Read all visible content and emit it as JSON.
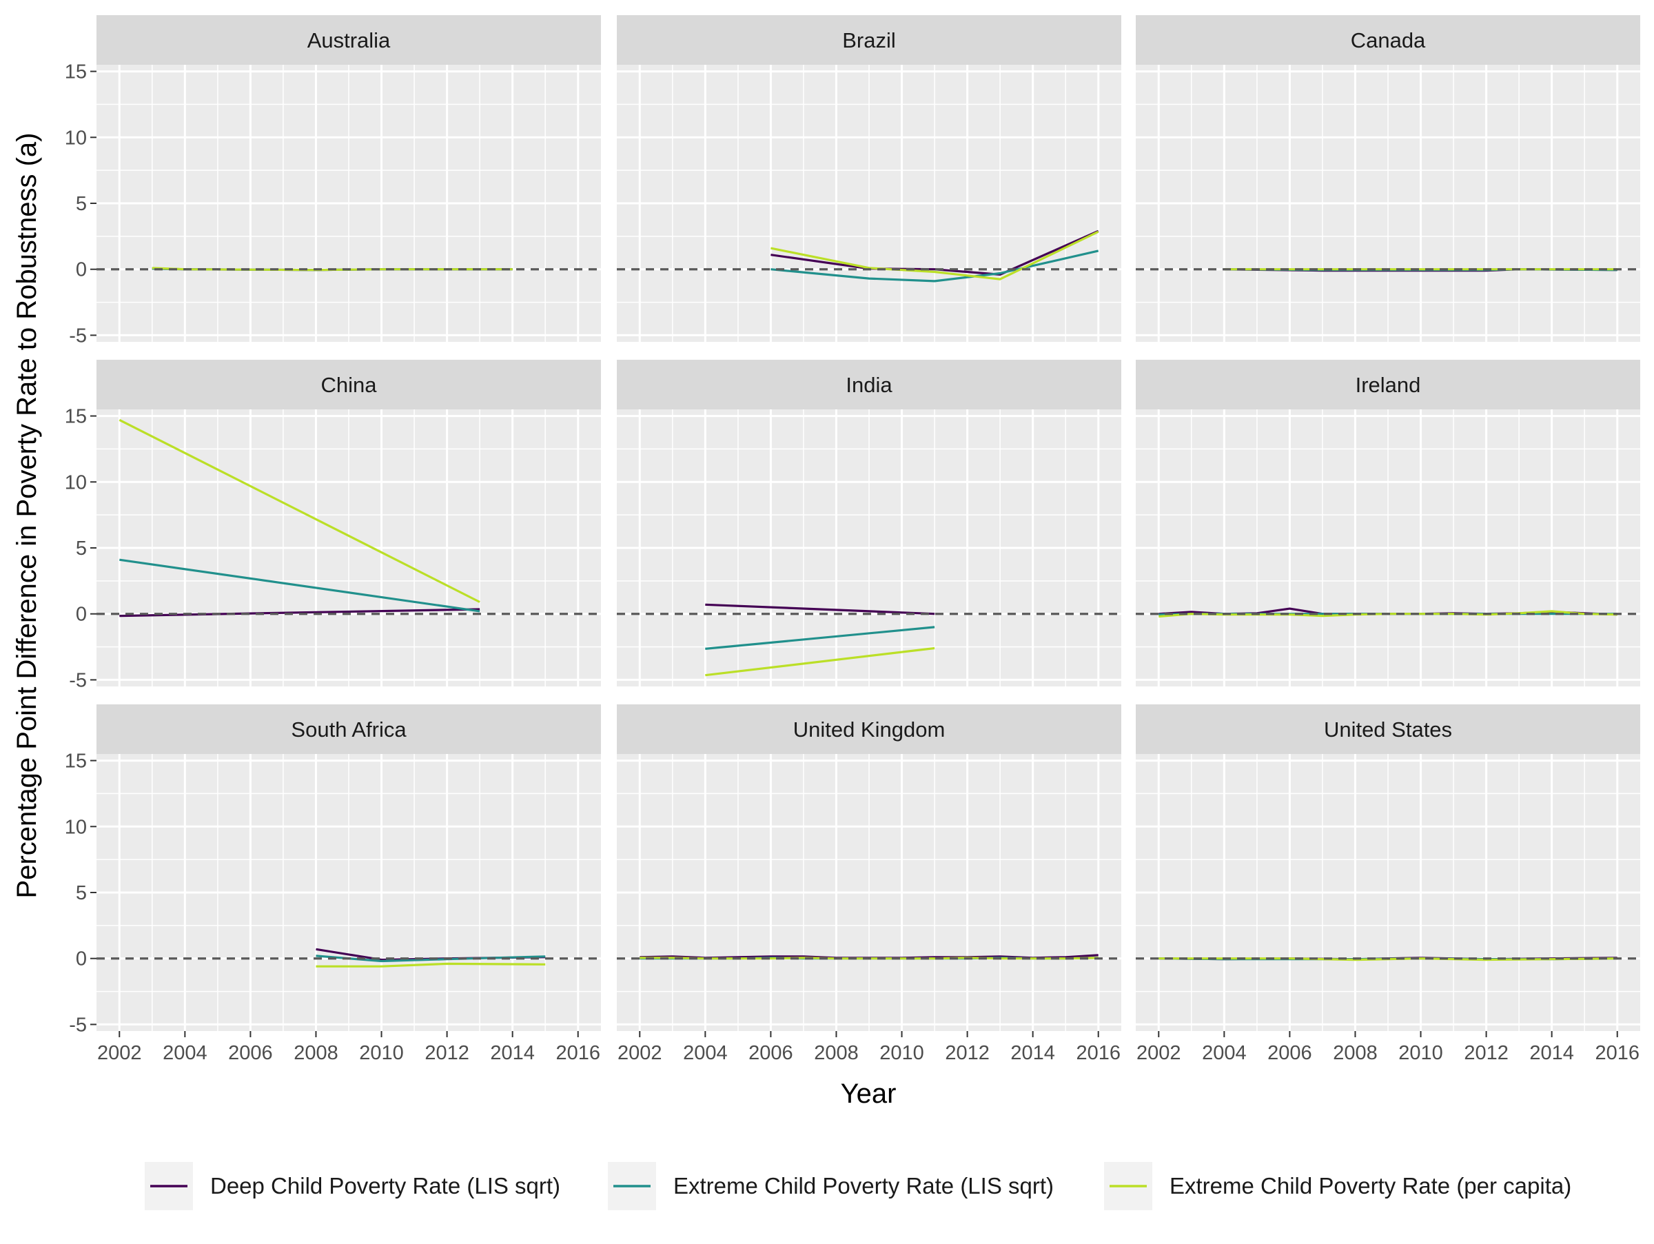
{
  "chart_data": {
    "type": "line",
    "xlabel": "Year",
    "ylabel": "Percentage Point Difference in Poverty Rate to Robustness (a)",
    "xlim": [
      2001.3,
      2016.7
    ],
    "ylim": [
      -5.5,
      15.5
    ],
    "x_ticks": [
      2002,
      2004,
      2006,
      2008,
      2010,
      2012,
      2014,
      2016
    ],
    "x_tick_labels": [
      "2002",
      "2004",
      "2006",
      "2008",
      "2010",
      "2012",
      "2014",
      "2016"
    ],
    "y_ticks": [
      -5,
      0,
      5,
      10,
      15
    ],
    "y_tick_labels": [
      "-5",
      "0",
      "5",
      "10",
      "15"
    ],
    "reference_line": 0,
    "grid": true,
    "legend_position": "bottom",
    "series_names": [
      "Deep Child Poverty Rate (LIS sqrt)",
      "Extreme Child Poverty Rate (LIS sqrt)",
      "Extreme Child Poverty Rate (per capita)"
    ],
    "series_colors": [
      "#440154",
      "#21908C",
      "#BBDF27"
    ],
    "panels": [
      {
        "country": "Australia",
        "series": [
          {
            "x": [
              2003,
              2004,
              2008,
              2010,
              2014
            ],
            "y": [
              0.05,
              0.0,
              -0.05,
              0.0,
              0.0
            ]
          },
          {
            "x": [
              2003,
              2004,
              2008,
              2010,
              2014
            ],
            "y": [
              0.05,
              0.0,
              -0.05,
              0.0,
              0.0
            ]
          },
          {
            "x": [
              2003,
              2004,
              2008,
              2010,
              2014
            ],
            "y": [
              0.1,
              0.0,
              -0.05,
              0.0,
              0.0
            ]
          }
        ]
      },
      {
        "country": "Brazil",
        "series": [
          {
            "x": [
              2006,
              2009,
              2011,
              2013,
              2016
            ],
            "y": [
              1.1,
              0.05,
              0.0,
              -0.4,
              2.9
            ]
          },
          {
            "x": [
              2006,
              2009,
              2011,
              2013,
              2016
            ],
            "y": [
              0.0,
              -0.7,
              -0.9,
              -0.3,
              1.4
            ]
          },
          {
            "x": [
              2006,
              2009,
              2011,
              2013,
              2016
            ],
            "y": [
              1.6,
              0.1,
              -0.2,
              -0.75,
              2.85
            ]
          }
        ]
      },
      {
        "country": "Canada",
        "series": [
          {
            "x": [
              2004,
              2007,
              2010,
              2012,
              2013,
              2016
            ],
            "y": [
              0.0,
              -0.1,
              -0.1,
              -0.1,
              0.0,
              -0.05
            ]
          },
          {
            "x": [
              2004,
              2007,
              2010,
              2012,
              2013,
              2016
            ],
            "y": [
              0.0,
              -0.05,
              -0.05,
              -0.05,
              0.0,
              -0.05
            ]
          },
          {
            "x": [
              2004,
              2007,
              2010,
              2012,
              2013,
              2016
            ],
            "y": [
              0.0,
              0.0,
              0.0,
              0.0,
              0.0,
              0.0
            ]
          }
        ]
      },
      {
        "country": "China",
        "series": [
          {
            "x": [
              2002,
              2013
            ],
            "y": [
              -0.15,
              0.35
            ]
          },
          {
            "x": [
              2002,
              2013
            ],
            "y": [
              4.1,
              0.2
            ]
          },
          {
            "x": [
              2002,
              2013
            ],
            "y": [
              14.7,
              0.9
            ]
          }
        ]
      },
      {
        "country": "India",
        "series": [
          {
            "x": [
              2004,
              2011
            ],
            "y": [
              0.7,
              0.0
            ]
          },
          {
            "x": [
              2004,
              2011
            ],
            "y": [
              -2.65,
              -1.0
            ]
          },
          {
            "x": [
              2004,
              2011
            ],
            "y": [
              -4.65,
              -2.6
            ]
          }
        ]
      },
      {
        "country": "Ireland",
        "series": [
          {
            "x": [
              2002,
              2003,
              2004,
              2005,
              2006,
              2007,
              2008,
              2009,
              2010,
              2011,
              2012,
              2013,
              2014,
              2015,
              2016
            ],
            "y": [
              0.0,
              0.15,
              0.0,
              0.05,
              0.4,
              0.0,
              0.0,
              0.0,
              0.0,
              0.05,
              0.0,
              0.05,
              0.15,
              0.05,
              -0.05
            ]
          },
          {
            "x": [
              2002,
              2003,
              2004,
              2005,
              2006,
              2007,
              2008,
              2009,
              2010,
              2011,
              2012,
              2013,
              2014,
              2015,
              2016
            ],
            "y": [
              -0.05,
              0.0,
              0.0,
              0.0,
              0.0,
              0.0,
              0.0,
              0.0,
              0.0,
              0.0,
              0.0,
              0.0,
              0.0,
              0.0,
              0.0
            ]
          },
          {
            "x": [
              2002,
              2003,
              2004,
              2005,
              2006,
              2007,
              2008,
              2009,
              2010,
              2011,
              2012,
              2013,
              2014,
              2015,
              2016
            ],
            "y": [
              -0.2,
              0.0,
              -0.05,
              -0.05,
              -0.05,
              -0.15,
              -0.05,
              0.0,
              0.0,
              0.0,
              -0.05,
              0.05,
              0.2,
              0.0,
              -0.05
            ]
          }
        ]
      },
      {
        "country": "South Africa",
        "series": [
          {
            "x": [
              2008,
              2010,
              2012,
              2015
            ],
            "y": [
              0.7,
              -0.1,
              0.0,
              0.1
            ]
          },
          {
            "x": [
              2008,
              2010,
              2012,
              2015
            ],
            "y": [
              0.2,
              -0.2,
              -0.05,
              0.15
            ]
          },
          {
            "x": [
              2008,
              2010,
              2012,
              2015
            ],
            "y": [
              -0.6,
              -0.6,
              -0.4,
              -0.45
            ]
          }
        ]
      },
      {
        "country": "United Kingdom",
        "series": [
          {
            "x": [
              2002,
              2003,
              2004,
              2005,
              2006,
              2007,
              2008,
              2009,
              2010,
              2011,
              2012,
              2013,
              2014,
              2015,
              2016
            ],
            "y": [
              0.1,
              0.15,
              0.05,
              0.1,
              0.15,
              0.15,
              0.05,
              0.05,
              0.05,
              0.1,
              0.1,
              0.15,
              0.05,
              0.1,
              0.25
            ]
          },
          {
            "x": [
              2002,
              2003,
              2004,
              2005,
              2006,
              2007,
              2008,
              2009,
              2010,
              2011,
              2012,
              2013,
              2014,
              2015,
              2016
            ],
            "y": [
              0.0,
              0.0,
              0.0,
              0.0,
              0.05,
              0.0,
              0.0,
              0.0,
              0.0,
              0.0,
              0.0,
              0.05,
              0.0,
              0.0,
              0.05
            ]
          },
          {
            "x": [
              2002,
              2003,
              2004,
              2005,
              2006,
              2007,
              2008,
              2009,
              2010,
              2011,
              2012,
              2013,
              2014,
              2015,
              2016
            ],
            "y": [
              0.05,
              0.05,
              0.0,
              0.0,
              0.0,
              0.05,
              0.0,
              0.0,
              0.0,
              0.0,
              0.05,
              0.0,
              0.0,
              0.0,
              0.05
            ]
          }
        ]
      },
      {
        "country": "United States",
        "series": [
          {
            "x": [
              2002,
              2004,
              2006,
              2008,
              2010,
              2012,
              2014,
              2016
            ],
            "y": [
              0.0,
              -0.05,
              0.0,
              -0.05,
              0.05,
              -0.05,
              0.0,
              0.05
            ]
          },
          {
            "x": [
              2002,
              2004,
              2006,
              2008,
              2010,
              2012,
              2014,
              2016
            ],
            "y": [
              0.0,
              -0.05,
              -0.05,
              -0.05,
              0.0,
              -0.05,
              -0.05,
              0.0
            ]
          },
          {
            "x": [
              2002,
              2004,
              2006,
              2008,
              2010,
              2012,
              2014,
              2016
            ],
            "y": [
              0.0,
              0.0,
              0.0,
              -0.1,
              0.0,
              -0.1,
              -0.05,
              0.0
            ]
          }
        ]
      }
    ]
  }
}
